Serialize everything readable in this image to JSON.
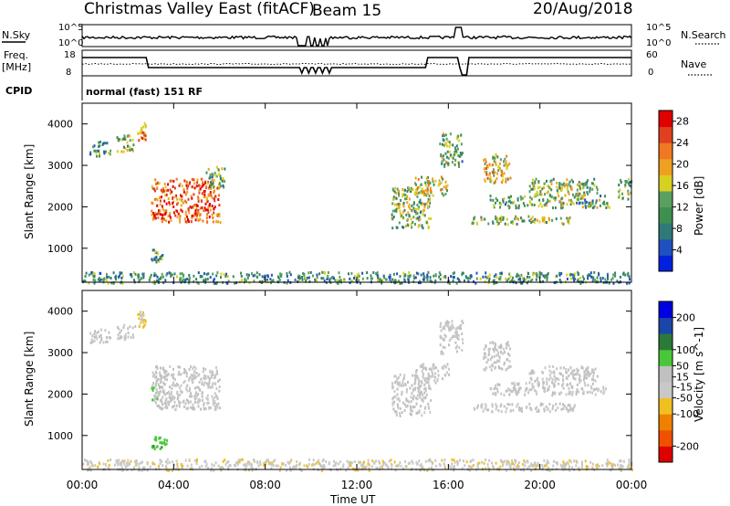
{
  "header": {
    "title": "Christmas Valley East (fitACF)",
    "beam": "Beam 15",
    "date": "20/Aug/2018"
  },
  "strip_labels": {
    "nsky": "N.Sky",
    "nsearch": "N.Search",
    "freq": "Freq.",
    "freq_unit": "[MHz]",
    "nave": "Nave",
    "cpid": "CPID",
    "cpid_value": "normal (fast) 151 RF"
  },
  "strip_ticks": {
    "noise_top": "10^5",
    "noise_bottom": "10^0",
    "freq_top": "18",
    "freq_bottom": "8",
    "nave_top": "60",
    "nave_bottom": "0"
  },
  "axes": {
    "xlabel": "Time UT",
    "ylabel_left": "Slant Range [km]"
  },
  "colors": {
    "power_scale": [
      "#0020e0",
      "#2050c0",
      "#2f7a78",
      "#3f8f50",
      "#5aa060",
      "#d8d020",
      "#f0a020",
      "#f07820",
      "#e04020",
      "#e00000"
    ],
    "velocity_scale": [
      "#0000e0",
      "#1a46a8",
      "#2b7a3a",
      "#48c838",
      "#c0c0c0",
      "#c8c8c8",
      "#f0c020",
      "#f08000",
      "#f05000",
      "#e00000"
    ]
  },
  "chart_data": [
    {
      "type": "heatmap",
      "name": "power",
      "title": "",
      "xlabel": "Time UT",
      "ylabel": "Slant Range [km]",
      "xlim": [
        0,
        24
      ],
      "ylim": [
        180,
        4500
      ],
      "x_ticks": [
        "00:00",
        "04:00",
        "08:00",
        "12:00",
        "16:00",
        "20:00",
        "00:00"
      ],
      "x_tick_values": [
        0,
        4,
        8,
        12,
        16,
        20,
        24
      ],
      "y_ticks": [
        1000,
        2000,
        3000,
        4000
      ],
      "colorbar": {
        "label": "Power [dB]",
        "ticks": [
          4,
          8,
          12,
          16,
          20,
          24,
          28
        ],
        "range": [
          0,
          30
        ]
      },
      "regions": [
        {
          "t0": 0.3,
          "t1": 1.2,
          "r0": 3250,
          "r1": 3600,
          "value": 10
        },
        {
          "t0": 1.5,
          "t1": 2.3,
          "r0": 3350,
          "r1": 3750,
          "value": 14
        },
        {
          "t0": 2.4,
          "t1": 2.75,
          "r0": 3600,
          "r1": 4050,
          "value": 22
        },
        {
          "t0": 3.0,
          "t1": 6.0,
          "r0": 1650,
          "r1": 2700,
          "value": 24
        },
        {
          "t0": 3.0,
          "t1": 3.7,
          "r0": 700,
          "r1": 1000,
          "value": 10
        },
        {
          "t0": 5.4,
          "t1": 6.2,
          "r0": 2500,
          "r1": 3000,
          "value": 12
        },
        {
          "t0": 13.5,
          "t1": 15.2,
          "r0": 1500,
          "r1": 2500,
          "value": 14
        },
        {
          "t0": 14.5,
          "t1": 16.0,
          "r0": 2300,
          "r1": 2750,
          "value": 16
        },
        {
          "t0": 15.6,
          "t1": 16.6,
          "r0": 3000,
          "r1": 3800,
          "value": 12
        },
        {
          "t0": 17.0,
          "t1": 21.5,
          "r0": 1600,
          "r1": 1800,
          "value": 14
        },
        {
          "t0": 17.8,
          "t1": 23.0,
          "r0": 2000,
          "r1": 2300,
          "value": 12
        },
        {
          "t0": 19.5,
          "t1": 22.5,
          "r0": 2300,
          "r1": 2700,
          "value": 14
        },
        {
          "t0": 17.5,
          "t1": 18.7,
          "r0": 2600,
          "r1": 3300,
          "value": 18
        },
        {
          "t0": 23.4,
          "t1": 24.0,
          "r0": 2200,
          "r1": 2700,
          "value": 12
        },
        {
          "t0": 0.0,
          "t1": 24.0,
          "r0": 180,
          "r1": 450,
          "value": 10
        }
      ]
    },
    {
      "type": "heatmap",
      "name": "velocity",
      "title": "",
      "xlabel": "Time UT",
      "ylabel": "Slant Range [km]",
      "xlim": [
        0,
        24
      ],
      "ylim": [
        180,
        4500
      ],
      "x_ticks": [
        "00:00",
        "04:00",
        "08:00",
        "12:00",
        "16:00",
        "20:00",
        "00:00"
      ],
      "x_tick_values": [
        0,
        4,
        8,
        12,
        16,
        20,
        24
      ],
      "y_ticks": [
        1000,
        2000,
        3000,
        4000
      ],
      "colorbar": {
        "label": "Velocity [m s^-1]",
        "ticks": [
          200,
          100,
          50,
          15,
          -15,
          -50,
          -100,
          -200
        ],
        "range": [
          -250,
          250
        ]
      },
      "regions": [
        {
          "t0": 0.3,
          "t1": 1.2,
          "r0": 3250,
          "r1": 3600,
          "value": 0
        },
        {
          "t0": 1.5,
          "t1": 2.3,
          "r0": 3350,
          "r1": 3750,
          "value": 0
        },
        {
          "t0": 2.4,
          "t1": 2.75,
          "r0": 3600,
          "r1": 4050,
          "value": -60
        },
        {
          "t0": 3.0,
          "t1": 6.0,
          "r0": 1650,
          "r1": 2700,
          "value": 0
        },
        {
          "t0": 3.0,
          "t1": 3.6,
          "r0": 1800,
          "r1": 2500,
          "value": 30
        },
        {
          "t0": 3.0,
          "t1": 3.7,
          "r0": 700,
          "r1": 1000,
          "value": 80
        },
        {
          "t0": 13.5,
          "t1": 15.2,
          "r0": 1500,
          "r1": 2500,
          "value": 0
        },
        {
          "t0": 14.5,
          "t1": 16.0,
          "r0": 2300,
          "r1": 2750,
          "value": 0
        },
        {
          "t0": 15.6,
          "t1": 16.6,
          "r0": 3000,
          "r1": 3800,
          "value": 0
        },
        {
          "t0": 17.0,
          "t1": 21.5,
          "r0": 1600,
          "r1": 1800,
          "value": 0
        },
        {
          "t0": 17.8,
          "t1": 23.0,
          "r0": 2000,
          "r1": 2300,
          "value": 0
        },
        {
          "t0": 19.5,
          "t1": 22.5,
          "r0": 2300,
          "r1": 2700,
          "value": 0
        },
        {
          "t0": 17.5,
          "t1": 18.7,
          "r0": 2600,
          "r1": 3300,
          "value": 0
        },
        {
          "t0": 0.0,
          "t1": 24.0,
          "r0": 180,
          "r1": 450,
          "value": -30
        }
      ]
    }
  ]
}
